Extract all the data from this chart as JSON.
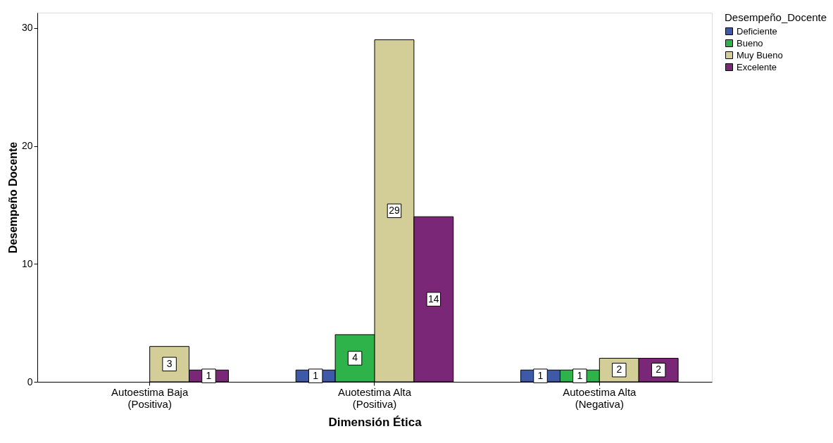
{
  "chart_data": {
    "type": "bar",
    "xlabel": "Dimensión Ética",
    "ylabel": "Desempeño Docente",
    "legend_title": "Desempeño_Docente",
    "categories": [
      "Autoestima Baja\n(Positiva)",
      "Auotestima Alta\n(Positiva)",
      "Autoestima Alta\n(Negativa)"
    ],
    "series": [
      {
        "name": "Deficiente",
        "color": "#3e59a8",
        "values": [
          null,
          1,
          1
        ]
      },
      {
        "name": "Bueno",
        "color": "#2db34a",
        "values": [
          null,
          4,
          1
        ]
      },
      {
        "name": "Muy Bueno",
        "color": "#d3ce97",
        "values": [
          3,
          29,
          2
        ]
      },
      {
        "name": "Excelente",
        "color": "#7b2778",
        "values": [
          1,
          14,
          2
        ]
      }
    ],
    "ylim": [
      0,
      31.3
    ],
    "yticks": [
      0,
      10,
      20,
      30
    ],
    "grid": false,
    "legend": "top right",
    "data_labels": true
  }
}
